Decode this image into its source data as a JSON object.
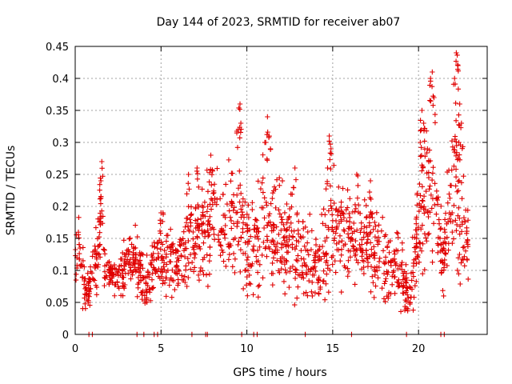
{
  "chart_data": {
    "type": "scatter",
    "title": "Day 144 of 2023, SRMTID for receiver ab07",
    "xlabel": "GPS time / hours",
    "ylabel": "SRMTID / TECUs",
    "xlim": [
      0,
      24
    ],
    "ylim": [
      0,
      0.45
    ],
    "xticks": [
      0,
      5,
      10,
      15,
      20
    ],
    "xtick_labels": [
      "0",
      "5",
      "10",
      "15",
      "20"
    ],
    "yticks": [
      0,
      0.05,
      0.1,
      0.15,
      0.2,
      0.25,
      0.3,
      0.35,
      0.4,
      0.45
    ],
    "ytick_labels": [
      "0",
      "0.05",
      "0.1",
      "0.15",
      "0.2",
      "0.25",
      "0.3",
      "0.35",
      "0.4",
      "0.45"
    ],
    "grid": true,
    "marker": "+",
    "color": "#e00000",
    "zero_points_x": [
      0.8,
      1.0,
      3.6,
      4.0,
      4.6,
      4.8,
      6.8,
      7.6,
      7.7,
      9.7,
      10.4,
      10.6,
      13.4,
      16.1,
      19.3,
      21.3,
      21.5
    ],
    "envelope": [
      [
        0.0,
        0.1,
        0.02
      ],
      [
        0.2,
        0.15,
        0.03
      ],
      [
        0.5,
        0.08,
        0.03
      ],
      [
        0.8,
        0.07,
        0.02
      ],
      [
        1.0,
        0.1,
        0.03
      ],
      [
        1.3,
        0.12,
        0.03
      ],
      [
        1.5,
        0.2,
        0.05
      ],
      [
        1.7,
        0.12,
        0.03
      ],
      [
        2.0,
        0.09,
        0.02
      ],
      [
        2.5,
        0.1,
        0.03
      ],
      [
        3.0,
        0.11,
        0.03
      ],
      [
        3.5,
        0.12,
        0.03
      ],
      [
        4.0,
        0.07,
        0.03
      ],
      [
        4.5,
        0.11,
        0.03
      ],
      [
        5.0,
        0.13,
        0.04
      ],
      [
        5.5,
        0.12,
        0.04
      ],
      [
        6.0,
        0.11,
        0.03
      ],
      [
        6.5,
        0.14,
        0.05
      ],
      [
        7.0,
        0.15,
        0.05
      ],
      [
        7.5,
        0.17,
        0.06
      ],
      [
        8.0,
        0.18,
        0.06
      ],
      [
        8.5,
        0.16,
        0.05
      ],
      [
        9.0,
        0.17,
        0.06
      ],
      [
        9.5,
        0.19,
        0.07
      ],
      [
        10.0,
        0.12,
        0.05
      ],
      [
        10.5,
        0.15,
        0.05
      ],
      [
        11.0,
        0.17,
        0.07
      ],
      [
        11.5,
        0.16,
        0.06
      ],
      [
        12.0,
        0.15,
        0.05
      ],
      [
        12.5,
        0.14,
        0.05
      ],
      [
        13.0,
        0.13,
        0.05
      ],
      [
        13.5,
        0.12,
        0.05
      ],
      [
        14.0,
        0.1,
        0.04
      ],
      [
        14.5,
        0.12,
        0.05
      ],
      [
        15.0,
        0.17,
        0.06
      ],
      [
        15.5,
        0.16,
        0.06
      ],
      [
        16.0,
        0.15,
        0.05
      ],
      [
        16.5,
        0.15,
        0.05
      ],
      [
        17.0,
        0.14,
        0.05
      ],
      [
        17.5,
        0.13,
        0.05
      ],
      [
        18.0,
        0.12,
        0.05
      ],
      [
        18.5,
        0.11,
        0.04
      ],
      [
        19.0,
        0.1,
        0.04
      ],
      [
        19.5,
        0.06,
        0.03
      ],
      [
        20.0,
        0.18,
        0.06
      ],
      [
        20.5,
        0.22,
        0.08
      ],
      [
        21.0,
        0.2,
        0.06
      ],
      [
        21.5,
        0.12,
        0.04
      ],
      [
        22.0,
        0.24,
        0.09
      ],
      [
        22.5,
        0.18,
        0.07
      ],
      [
        22.9,
        0.15,
        0.05
      ]
    ],
    "peaks": [
      [
        1.55,
        0.27
      ],
      [
        1.5,
        0.24
      ],
      [
        7.9,
        0.28
      ],
      [
        9.6,
        0.36
      ],
      [
        9.65,
        0.33
      ],
      [
        9.5,
        0.32
      ],
      [
        11.2,
        0.34
      ],
      [
        11.1,
        0.3
      ],
      [
        11.3,
        0.31
      ],
      [
        14.8,
        0.31
      ],
      [
        14.9,
        0.29
      ],
      [
        14.7,
        0.26
      ],
      [
        20.2,
        0.35
      ],
      [
        20.3,
        0.33
      ],
      [
        20.1,
        0.3
      ],
      [
        20.8,
        0.41
      ],
      [
        20.7,
        0.4
      ],
      [
        20.9,
        0.37
      ],
      [
        22.2,
        0.44
      ],
      [
        22.3,
        0.42
      ],
      [
        22.1,
        0.4
      ],
      [
        22.4,
        0.36
      ],
      [
        22.5,
        0.33
      ],
      [
        22.35,
        0.3
      ],
      [
        5.0,
        0.19
      ],
      [
        6.6,
        0.25
      ],
      [
        7.1,
        0.26
      ],
      [
        12.8,
        0.26
      ],
      [
        16.4,
        0.25
      ],
      [
        17.2,
        0.24
      ]
    ]
  }
}
